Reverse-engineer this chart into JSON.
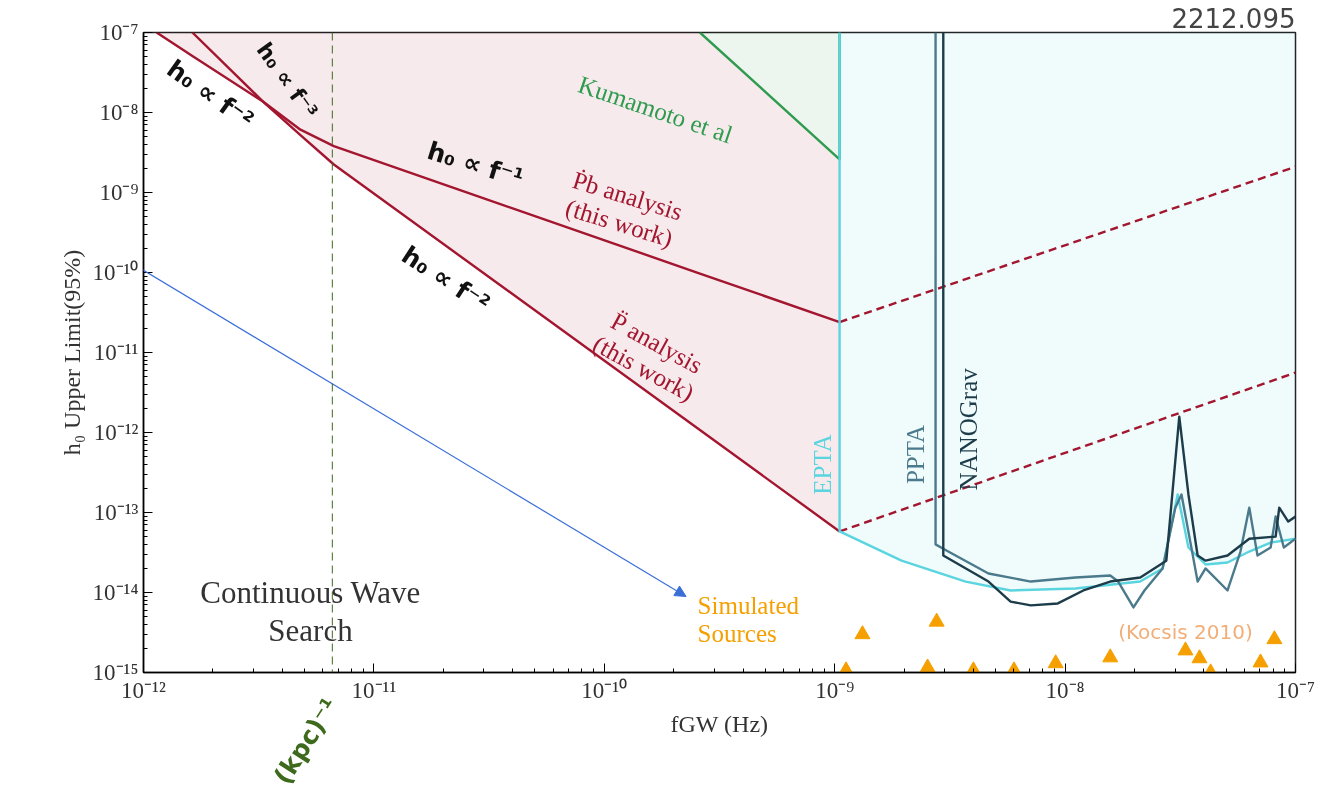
{
  "chart_data": {
    "type": "line",
    "title": "2212.095",
    "xlabel": "fGW (Hz)",
    "ylabel": "h₀ Upper Limit(95%)",
    "log": "xy",
    "grid": false,
    "xlim": [
      1e-12,
      1e-07
    ],
    "ylim": [
      1e-15,
      1e-07
    ],
    "xticks": [
      {
        "value": 1e-12,
        "label": "10⁻¹²"
      },
      {
        "value": 1e-11,
        "label": "10⁻¹¹"
      },
      {
        "value": 1e-10,
        "label": "10⁻¹⁰"
      },
      {
        "value": 1e-09,
        "label": "10⁻⁹"
      },
      {
        "value": 1e-08,
        "label": "10⁻⁸"
      },
      {
        "value": 1e-07,
        "label": "10⁻⁷"
      }
    ],
    "yticks": [
      {
        "value": 1e-15,
        "label": "10⁻¹⁵"
      },
      {
        "value": 1e-14,
        "label": "10⁻¹⁴"
      },
      {
        "value": 1e-13,
        "label": "10⁻¹³"
      },
      {
        "value": 1e-12,
        "label": "10⁻¹²"
      },
      {
        "value": 1e-11,
        "label": "10⁻¹¹"
      },
      {
        "value": 1e-10,
        "label": "10⁻¹⁰"
      },
      {
        "value": 1e-09,
        "label": "10⁻⁹"
      },
      {
        "value": 1e-08,
        "label": "10⁻⁸"
      },
      {
        "value": 1e-07,
        "label": "10⁻⁷"
      }
    ],
    "ref_lines": [
      {
        "axis": "x",
        "value": 6.6e-12,
        "label": "(kpc)⁻¹",
        "color": "#3d6a1c",
        "line_style": "dashed"
      }
    ],
    "annotations": [
      "h₀ ∝ f⁻³",
      "h₀ ∝ f⁻²",
      "h₀ ∝ f⁻¹",
      "h₀ ∝ f⁻²",
      "Continuous Wave\nSearch",
      "(Kocsis 2010)"
    ],
    "series": [
      {
        "name": "P̈ analysis\n(this work)",
        "color": "#a3162f",
        "line_style": "solid",
        "x": [
          1.14e-12,
          1.63e-12,
          3.3e-12,
          4.8e-12,
          6.7e-12,
          1.05e-09
        ],
        "values": [
          1e-07,
          5.1e-08,
          1.37e-08,
          5.2e-09,
          2.24e-09,
          5.8e-14
        ],
        "lower": [
          1e-07,
          5.1e-08,
          1.37e-08,
          5.2e-09,
          2.24e-09,
          5.8e-14
        ],
        "upper": [
          1e-07,
          1e-07,
          1.37e-08,
          6.1e-09,
          3.8e-09,
          2.4e-11
        ]
      },
      {
        "color": "#a3162f",
        "line_style": "dashed",
        "x": [
          1.05e-09,
          1e-07
        ],
        "values": [
          5.8e-14,
          5.6e-12
        ]
      },
      {
        "name": "Ṗb analysis\n(this work)",
        "color": "#a3162f",
        "line_style": "solid",
        "x": [
          1.63e-12,
          3.3e-12,
          4.8e-12,
          6.7e-12,
          2.6e-10,
          1.05e-09
        ],
        "values": [
          1e-07,
          1.37e-08,
          6.1e-09,
          3.8e-09,
          9.7e-11,
          2.4e-11
        ],
        "lower": [
          1e-07,
          1.37e-08,
          6.1e-09,
          3.8e-09,
          9.7e-11,
          2.4e-11
        ],
        "upper": [
          1e-07,
          1e-07,
          1e-07,
          1e-07,
          1e-07,
          2.6e-09
        ]
      },
      {
        "color": "#a3162f",
        "line_style": "dashed",
        "x": [
          1.05e-09,
          1e-07
        ],
        "values": [
          2.4e-11,
          2.1e-09
        ]
      },
      {
        "name": "Kumamoto et al",
        "color": "#2e9b4f",
        "line_style": "solid",
        "x": [
          2.6e-10,
          1.05e-09,
          1.05e-09
        ],
        "values": [
          1e-07,
          2.6e-09,
          1e-07
        ],
        "lower": [
          1e-07,
          2.6e-09,
          1e-07
        ],
        "upper": [
          1e-07,
          1e-07,
          1e-07
        ]
      },
      {
        "name": "EPTA",
        "color": "#5ad5e0",
        "line_style": "solid",
        "x": [
          1.05e-09,
          1.05e-09,
          1.95e-09,
          3.7e-09,
          5.8e-09,
          1.11e-08,
          2.12e-08,
          2.65e-08,
          3.08e-08,
          3.43e-08,
          4.07e-08,
          5.07e-08,
          6.3e-08,
          7.8e-08,
          1e-07
        ],
        "values": [
          1e-07,
          5.8e-14,
          2.5e-14,
          1.37e-14,
          1.06e-14,
          1.12e-14,
          1.37e-14,
          2e-14,
          1.68e-13,
          3.65e-14,
          2.24e-14,
          2.37e-14,
          3.25e-14,
          4.2e-14,
          4.7e-14
        ],
        "lower": [
          1e-07,
          5.8e-14,
          2.5e-14,
          1.37e-14,
          1.06e-14,
          1.12e-14,
          1.37e-14,
          2e-14,
          1.68e-13,
          3.65e-14,
          2.24e-14,
          2.37e-14,
          3.25e-14,
          4.2e-14,
          4.7e-14
        ],
        "upper": [
          1e-07,
          1e-07,
          1e-07,
          1e-07,
          1e-07,
          1e-07,
          1e-07,
          1e-07,
          1e-07,
          1e-07,
          1e-07,
          1e-07,
          1e-07,
          1e-07,
          1e-07
        ]
      },
      {
        "name": "PPTA",
        "color": "#4a7a8c",
        "line_style": "solid",
        "x": [
          2.74e-09,
          2.74e-09,
          3e-09,
          4.65e-09,
          7.1e-09,
          1.11e-08,
          1.57e-08,
          1.7e-08,
          1.98e-08,
          2.21e-08,
          2.65e-08,
          3.01e-08,
          3.2e-08,
          3.5e-08,
          3.76e-08,
          4.07e-08,
          5.07e-08,
          5.77e-08,
          6.3e-08,
          6.84e-08,
          7.8e-08,
          8.2e-08,
          8.9e-08,
          1e-07
        ],
        "values": [
          1e-07,
          4e-14,
          3.45e-14,
          1.73e-14,
          1.37e-14,
          1.54e-14,
          1.63e-14,
          1.37e-14,
          6.5e-15,
          1.06e-14,
          2e-14,
          1.15e-13,
          1.68e-13,
          4.2e-14,
          1.37e-14,
          2e-14,
          1.06e-14,
          3.25e-14,
          1.15e-13,
          2.9e-14,
          3.65e-14,
          8.9e-14,
          3.65e-14,
          4.7e-14
        ]
      },
      {
        "name": "NANOGrav",
        "color": "#1d3c4a",
        "line_style": "solid",
        "x": [
          2.96e-09,
          2.96e-09,
          4.65e-09,
          5.8e-09,
          7.1e-09,
          9.3e-09,
          1.2e-08,
          1.57e-08,
          2.12e-08,
          2.75e-08,
          3.13e-08,
          3.43e-08,
          3.76e-08,
          4.07e-08,
          5.07e-08,
          6.3e-08,
          8.2e-08,
          8.5e-08,
          9.3e-08,
          1e-07
        ],
        "values": [
          1e-07,
          2.9e-14,
          1.37e-14,
          7.7e-15,
          6.9e-15,
          7.3e-15,
          1.06e-14,
          1.37e-14,
          1.54e-14,
          2.5e-14,
          1.58e-12,
          1.68e-13,
          2.9e-14,
          2.5e-14,
          2.9e-14,
          4.7e-14,
          5e-14,
          1.15e-13,
          7.7e-14,
          8.9e-14
        ]
      },
      {
        "type": "scatter",
        "name": "Simulated\nSources",
        "color": "#f5a000",
        "marker": "triangle",
        "x": [
          1.12e-09,
          1.32e-09,
          2.53e-09,
          2.77e-09,
          4e-09,
          6e-09,
          9.1e-09,
          1.57e-08,
          3.33e-08,
          3.83e-08,
          4.28e-08,
          7.05e-08,
          8.1e-08
        ],
        "values": [
          1.06e-15,
          3e-15,
          1.15e-15,
          4.3e-15,
          1.06e-15,
          1.06e-15,
          1.3e-15,
          1.54e-15,
          1.88e-15,
          1.5e-15,
          1e-15,
          1.33e-15,
          2.6e-15
        ]
      }
    ]
  }
}
